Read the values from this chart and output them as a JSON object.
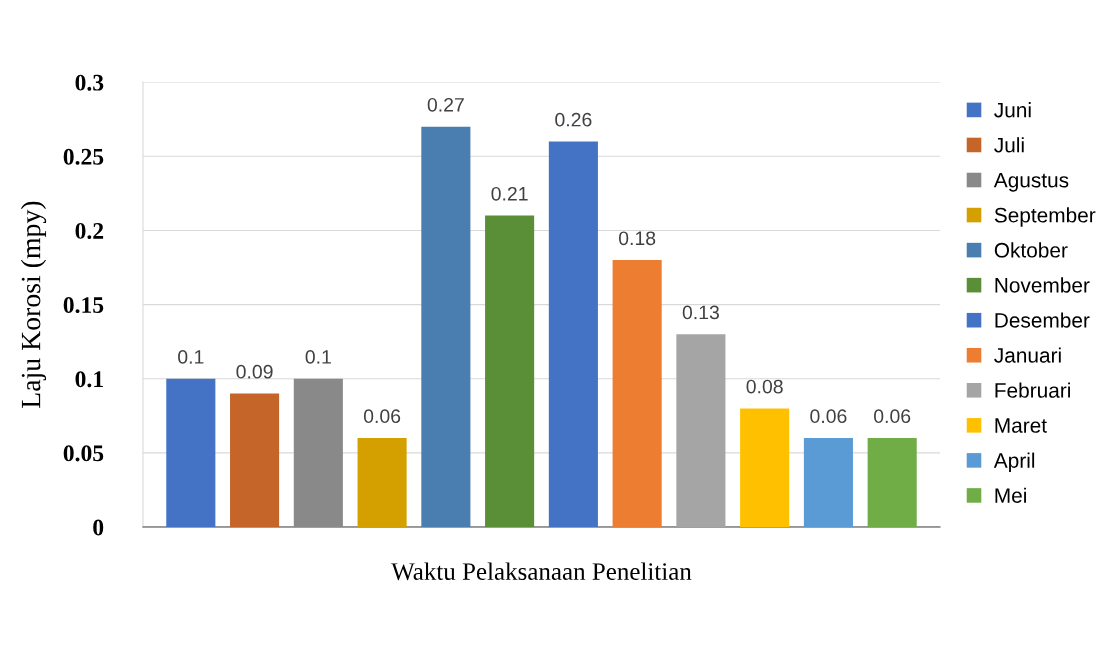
{
  "chart_data": {
    "type": "bar",
    "xlabel": "Waktu Pelaksanaan Penelitian",
    "ylabel": "Laju Korosi (mpy)",
    "categories": [
      null
    ],
    "series": [
      {
        "name": "Juni",
        "color": "#4472c4",
        "values": [
          0.1
        ]
      },
      {
        "name": "Juli",
        "color": "#c5652a",
        "values": [
          0.09
        ]
      },
      {
        "name": "Agustus",
        "color": "#898989",
        "values": [
          0.1
        ]
      },
      {
        "name": "September",
        "color": "#d4a000",
        "values": [
          0.06
        ]
      },
      {
        "name": "Oktober",
        "color": "#4a7eb0",
        "values": [
          0.27
        ]
      },
      {
        "name": "November",
        "color": "#5a8f37",
        "values": [
          0.21
        ]
      },
      {
        "name": "Desember",
        "color": "#4472c4",
        "values": [
          0.26
        ]
      },
      {
        "name": "Januari",
        "color": "#ed7d31",
        "values": [
          0.18
        ]
      },
      {
        "name": "Februari",
        "color": "#a5a5a5",
        "values": [
          0.13
        ]
      },
      {
        "name": "Maret",
        "color": "#ffc000",
        "values": [
          0.08
        ]
      },
      {
        "name": "April",
        "color": "#5b9bd5",
        "values": [
          0.06
        ]
      },
      {
        "name": "Mei",
        "color": "#70ad47",
        "values": [
          0.06
        ]
      }
    ],
    "ylim": [
      0,
      0.3
    ],
    "yticks": [
      0,
      0.05,
      0.1,
      0.15,
      0.2,
      0.25,
      0.3
    ],
    "grid": "y",
    "legend": "right",
    "data_labels": true
  }
}
